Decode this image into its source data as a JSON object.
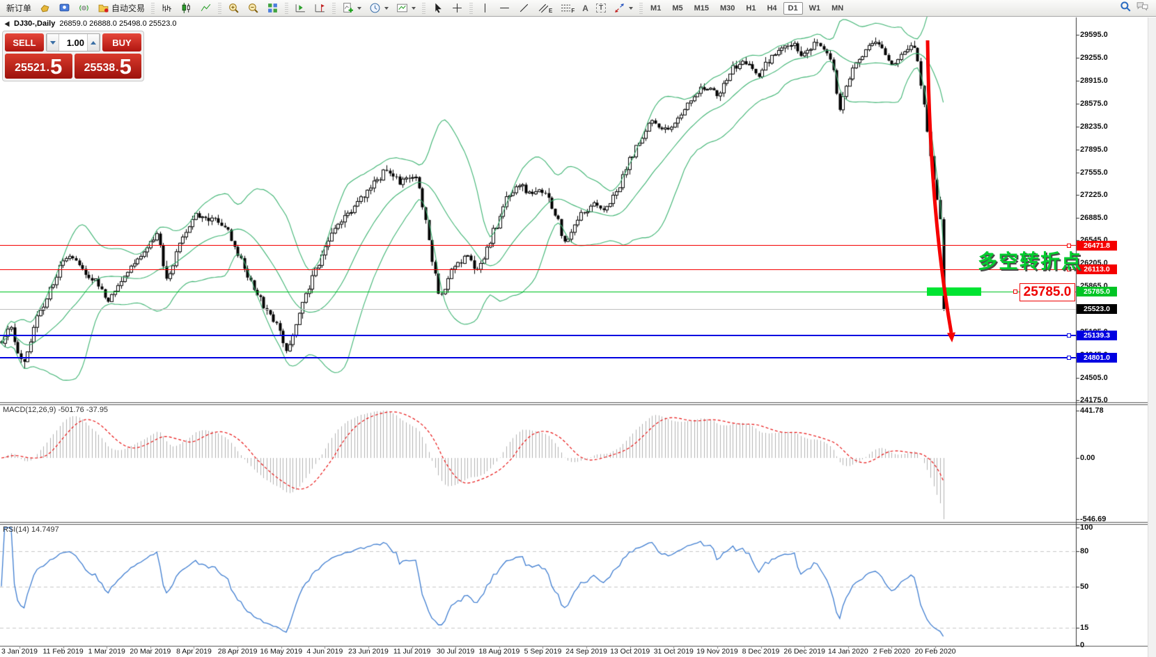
{
  "toolbar": {
    "new_order": "新订单",
    "auto_trading": "自动交易",
    "letter_a": "A",
    "letter_t": "T",
    "sub_e": "E",
    "sub_f": "F",
    "timeframes": [
      "M1",
      "M5",
      "M15",
      "M30",
      "H1",
      "H4",
      "D1",
      "W1",
      "MN"
    ],
    "active_timeframe": "D1"
  },
  "chart_title": {
    "symbol_period": "DJ30-,Daily",
    "ohlc": "26859.0 26888.0 25498.0 25523.0"
  },
  "one_click": {
    "sell": "SELL",
    "buy": "BUY",
    "volume": "1.00",
    "point": ".",
    "sell_main": "25521",
    "sell_frac": "5",
    "buy_main": "25538",
    "buy_frac": "5"
  },
  "chart_data": {
    "type": "candlestick",
    "symbol": "DJ30-",
    "period": "Daily",
    "ohlc": {
      "open": 26859.0,
      "high": 26888.0,
      "low": 25498.0,
      "close": 25523.0
    },
    "y_ticks": [
      "29595.0",
      "29255.0",
      "28915.0",
      "28575.0",
      "28235.0",
      "27895.0",
      "27555.0",
      "27225.0",
      "26885.0",
      "26545.0",
      "26205.0",
      "25865.0",
      "25525.0",
      "25185.0",
      "24845.0",
      "24505.0",
      "24175.0"
    ],
    "x_dates": [
      "3 Jan 2019",
      "11 Feb 2019",
      "1 Mar 2019",
      "20 Mar 2019",
      "8 Apr 2019",
      "28 Apr 2019",
      "16 May 2019",
      "4 Jun 2019",
      "23 Jun 2019",
      "11 Jul 2019",
      "30 Jul 2019",
      "18 Aug 2019",
      "5 Sep 2019",
      "24 Sep 2019",
      "13 Oct 2019",
      "31 Oct 2019",
      "19 Nov 2019",
      "8 Dec 2019",
      "26 Dec 2019",
      "14 Jan 2020",
      "2 Feb 2020",
      "20 Feb 2020"
    ],
    "price_levels": [
      {
        "price": 26471.8,
        "label": "26471.8",
        "color": "#f50000",
        "badge": "#f50000",
        "width": 1,
        "handle": true
      },
      {
        "price": 26113.0,
        "label": "26113.0",
        "color": "#f50000",
        "badge": "#f50000",
        "width": 1,
        "handle": true
      },
      {
        "price": 25785.0,
        "label": "25785.0",
        "color": "#00c424",
        "badge": "#00c424",
        "width": 1,
        "handle": true
      },
      {
        "price": 25523.0,
        "label": "25523.0",
        "color": "#c0c0c0",
        "badge": "#000000",
        "width": 1,
        "handle": false
      },
      {
        "price": 25139.3,
        "label": "25139.3",
        "color": "#0000e1",
        "badge": "#0000e1",
        "width": 2,
        "handle": true
      },
      {
        "price": 24801.0,
        "label": "24801.0",
        "color": "#0000e1",
        "badge": "#0000e1",
        "width": 2,
        "handle": true
      }
    ],
    "bollinger": {
      "period": 20,
      "deviation": 2,
      "color": "#3cb371"
    },
    "macd": {
      "name": "MACD(12,26,9)",
      "main": "-501.76",
      "signal": "-37.95",
      "ticks": [
        "441.78",
        "0.00",
        "-546.69"
      ],
      "bar_color": "#b0b0b0",
      "signal_color": "#e81212"
    },
    "rsi": {
      "name": "RSI(14)",
      "value": "14.7497",
      "ticks": [
        "100",
        "80",
        "50",
        "15",
        "0"
      ],
      "dashed_levels": [
        "80",
        "50",
        "15"
      ],
      "line_color": "#3d7cd0"
    },
    "annotations": {
      "turning_point_text": "多空转折点",
      "target_label": "25785.0",
      "highlight": {
        "x": 1331,
        "y": 413,
        "w": 78,
        "h": 12,
        "color": "#00e432"
      },
      "arrow": {
        "from": [
          1332,
          58
        ],
        "to": [
          1366,
          478
        ],
        "color": "#f50000"
      }
    },
    "axis_ranges": {
      "main": [
        24175,
        29595
      ],
      "macd": [
        -546.69,
        441.78
      ],
      "rsi": [
        0,
        100
      ]
    },
    "price_path_anchors": [
      [
        2,
        25050
      ],
      [
        18,
        25250
      ],
      [
        35,
        24680
      ],
      [
        55,
        25350
      ],
      [
        80,
        25950
      ],
      [
        100,
        26350
      ],
      [
        118,
        26120
      ],
      [
        140,
        25980
      ],
      [
        158,
        25620
      ],
      [
        180,
        26060
      ],
      [
        205,
        26350
      ],
      [
        228,
        26620
      ],
      [
        243,
        25950
      ],
      [
        262,
        26560
      ],
      [
        285,
        26950
      ],
      [
        308,
        26880
      ],
      [
        328,
        26720
      ],
      [
        348,
        26250
      ],
      [
        372,
        25720
      ],
      [
        398,
        25320
      ],
      [
        415,
        24880
      ],
      [
        438,
        25680
      ],
      [
        458,
        26160
      ],
      [
        482,
        26680
      ],
      [
        508,
        27020
      ],
      [
        532,
        27320
      ],
      [
        555,
        27560
      ],
      [
        578,
        27420
      ],
      [
        600,
        27480
      ],
      [
        616,
        26650
      ],
      [
        633,
        25680
      ],
      [
        652,
        26080
      ],
      [
        670,
        26350
      ],
      [
        690,
        26080
      ],
      [
        707,
        26560
      ],
      [
        724,
        27020
      ],
      [
        744,
        27390
      ],
      [
        764,
        27230
      ],
      [
        784,
        27290
      ],
      [
        802,
        26880
      ],
      [
        814,
        26480
      ],
      [
        832,
        26900
      ],
      [
        850,
        27080
      ],
      [
        872,
        26980
      ],
      [
        892,
        27350
      ],
      [
        914,
        27900
      ],
      [
        936,
        28300
      ],
      [
        960,
        28120
      ],
      [
        986,
        28550
      ],
      [
        1012,
        28830
      ],
      [
        1032,
        28720
      ],
      [
        1050,
        29030
      ],
      [
        1072,
        29230
      ],
      [
        1092,
        28960
      ],
      [
        1112,
        29330
      ],
      [
        1136,
        29480
      ],
      [
        1156,
        29300
      ],
      [
        1176,
        29520
      ],
      [
        1196,
        29230
      ],
      [
        1208,
        28500
      ],
      [
        1226,
        29080
      ],
      [
        1246,
        29360
      ],
      [
        1258,
        29540
      ],
      [
        1270,
        29380
      ],
      [
        1282,
        29150
      ],
      [
        1294,
        29300
      ],
      [
        1306,
        29420
      ],
      [
        1316,
        29460
      ],
      [
        1324,
        28900
      ],
      [
        1332,
        28300
      ],
      [
        1340,
        27600
      ],
      [
        1348,
        27100
      ],
      [
        1356,
        26860
      ]
    ]
  }
}
